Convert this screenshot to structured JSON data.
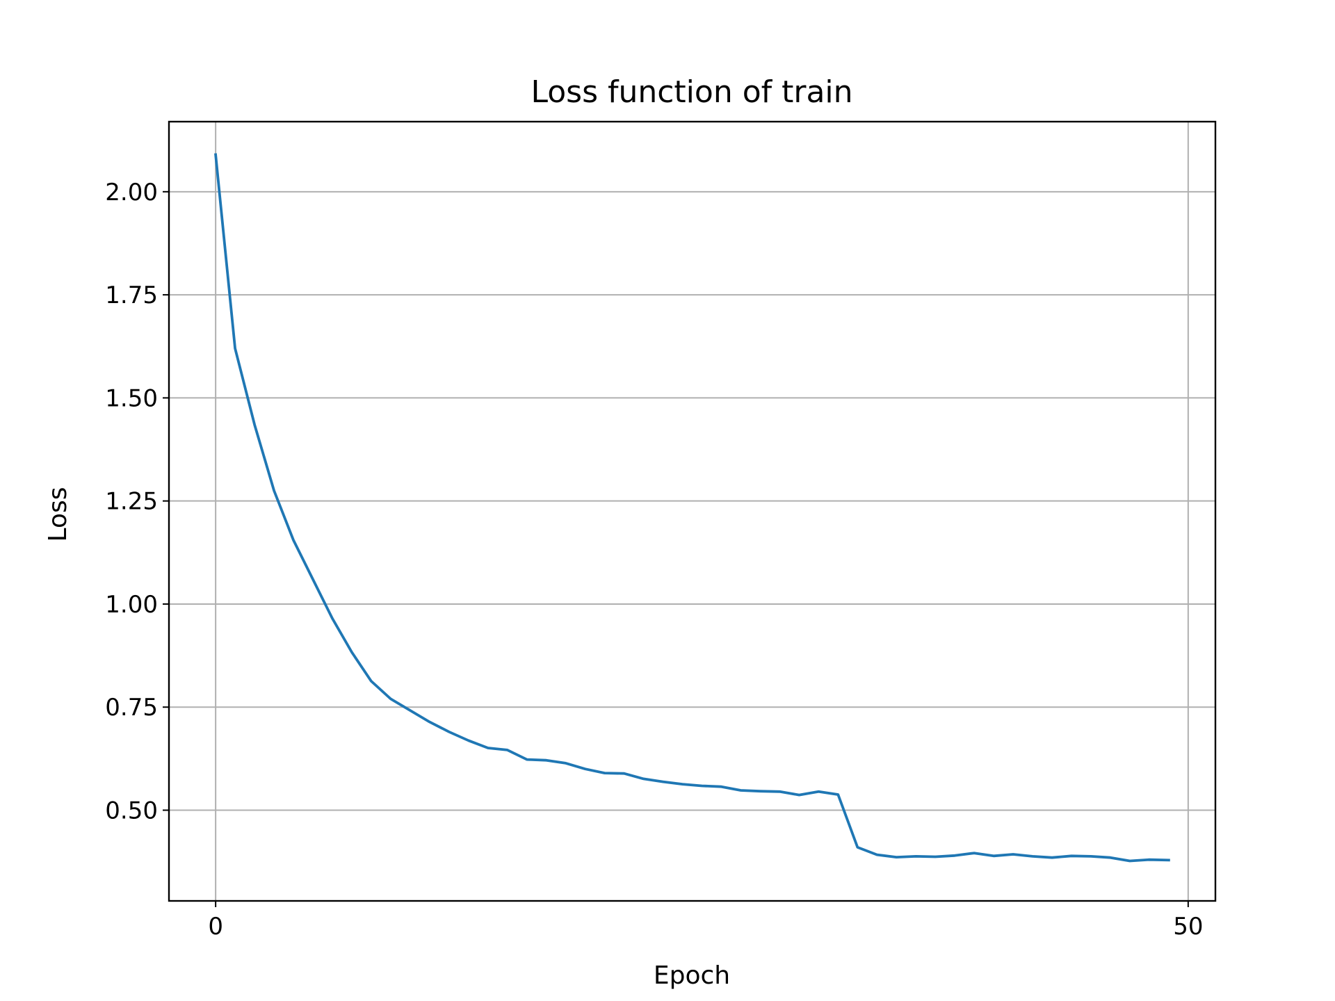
{
  "chart_data": {
    "type": "line",
    "title": "Loss function of train",
    "xlabel": "Epoch",
    "ylabel": "Loss",
    "xlim": [
      -2.4,
      51.4
    ],
    "ylim": [
      0.28,
      2.17
    ],
    "xticks": [
      0,
      50
    ],
    "xtick_labels": [
      "0",
      "50"
    ],
    "yticks": [
      0.5,
      0.75,
      1.0,
      1.25,
      1.5,
      1.75,
      2.0
    ],
    "ytick_labels": [
      "0.50",
      "0.75",
      "1.00",
      "1.25",
      "1.50",
      "1.75",
      "2.00"
    ],
    "grid": true,
    "series": [
      {
        "color": "#1f77b4",
        "x": [
          0,
          1,
          2,
          3,
          4,
          5,
          6,
          7,
          8,
          9,
          10,
          11,
          12,
          13,
          14,
          15,
          16,
          17,
          18,
          19,
          20,
          21,
          22,
          23,
          24,
          25,
          26,
          27,
          28,
          29,
          30,
          31,
          32,
          33,
          34,
          35,
          36,
          37,
          38,
          39,
          40,
          41,
          42,
          43,
          44,
          45,
          46,
          47,
          48,
          49
        ],
        "y": [
          2.09,
          1.62,
          1.435,
          1.275,
          1.155,
          1.06,
          0.965,
          0.883,
          0.813,
          0.77,
          0.742,
          0.714,
          0.69,
          0.669,
          0.651,
          0.646,
          0.623,
          0.621,
          0.614,
          0.6,
          0.59,
          0.589,
          0.576,
          0.569,
          0.563,
          0.559,
          0.557,
          0.548,
          0.546,
          0.545,
          0.537,
          0.545,
          0.538,
          0.41,
          0.392,
          0.386,
          0.388,
          0.387,
          0.39,
          0.396,
          0.389,
          0.393,
          0.388,
          0.385,
          0.389,
          0.388,
          0.385,
          0.377,
          0.38,
          0.379
        ]
      }
    ]
  }
}
